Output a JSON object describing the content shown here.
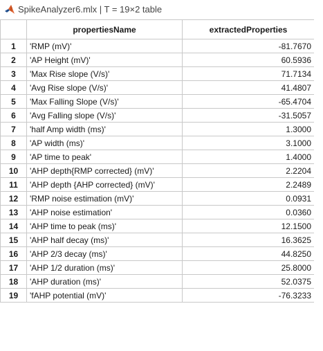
{
  "window": {
    "title": "SpikeAnalyzer6.mlx | T = 19×2 table",
    "logo_icon": "matlab-logo-icon"
  },
  "table": {
    "columns": [
      "propertiesName",
      "extractedProperties"
    ],
    "rows": [
      {
        "num": "1",
        "name": "'RMP (mV)'",
        "value": "-81.7670"
      },
      {
        "num": "2",
        "name": "'AP Height (mV)'",
        "value": "60.5936"
      },
      {
        "num": "3",
        "name": "'Max Rise slope (V/s)'",
        "value": "71.7134"
      },
      {
        "num": "4",
        "name": "'Avg Rise slope (V/s)'",
        "value": "41.4807"
      },
      {
        "num": "5",
        "name": "'Max Falling Slope (V/s)'",
        "value": "-65.4704"
      },
      {
        "num": "6",
        "name": "'Avg Falling slope (V/s)'",
        "value": "-31.5057"
      },
      {
        "num": "7",
        "name": "'half Amp width (ms)'",
        "value": "1.3000"
      },
      {
        "num": "8",
        "name": "'AP width (ms)'",
        "value": "3.1000"
      },
      {
        "num": "9",
        "name": "'AP time to peak'",
        "value": "1.4000"
      },
      {
        "num": "10",
        "name": "'AHP depth{RMP corrected} (mV)'",
        "value": "2.2204"
      },
      {
        "num": "11",
        "name": "'AHP depth {AHP corrected} (mV)'",
        "value": "2.2489"
      },
      {
        "num": "12",
        "name": "'RMP noise estimation (mV)'",
        "value": "0.0931"
      },
      {
        "num": "13",
        "name": "'AHP noise estimation'",
        "value": "0.0360"
      },
      {
        "num": "14",
        "name": "'AHP time to peak (ms)'",
        "value": "12.1500"
      },
      {
        "num": "15",
        "name": "'AHP half decay (ms)'",
        "value": "16.3625"
      },
      {
        "num": "16",
        "name": "'AHP 2/3 decay (ms)'",
        "value": "44.8250"
      },
      {
        "num": "17",
        "name": "'AHP 1/2 duration (ms)'",
        "value": "25.8000"
      },
      {
        "num": "18",
        "name": "'AHP duration (ms)'",
        "value": "52.0375"
      },
      {
        "num": "19",
        "name": "'fAHP potential (mV)'",
        "value": "-76.3233"
      }
    ]
  },
  "colors": {
    "logo_orange": "#e16737",
    "logo_blue": "#1f4e8c",
    "grid_line": "#c8c8c8"
  }
}
